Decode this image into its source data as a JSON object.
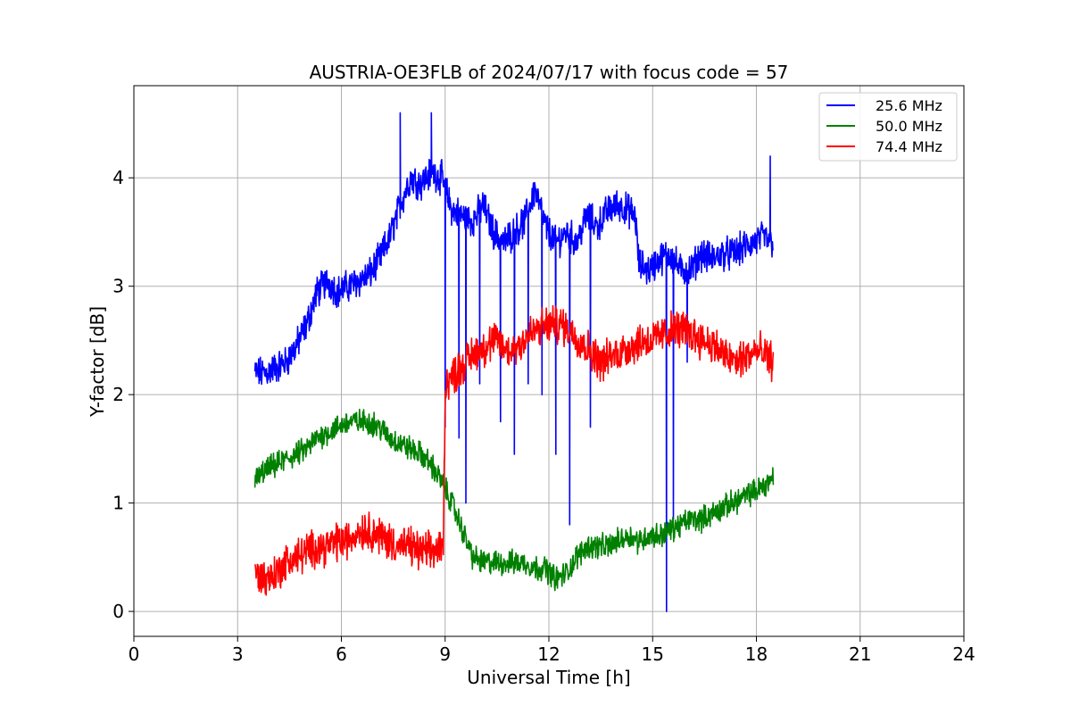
{
  "chart_data": {
    "type": "line",
    "title": "AUSTRIA-OE3FLB of 2024/07/17 with focus code = 57",
    "xlabel": "Universal Time [h]",
    "ylabel": "Y-factor [dB]",
    "xlim": [
      0,
      24
    ],
    "ylim": [
      -0.23,
      4.85
    ],
    "xticks": [
      0,
      3,
      6,
      9,
      12,
      15,
      18,
      21,
      24
    ],
    "yticks": [
      0,
      1,
      2,
      3,
      4
    ],
    "grid": true,
    "legend_position": "top-right",
    "series": [
      {
        "name": "25.6 MHz",
        "color": "#0000ff",
        "x": [
          3.5,
          3.8,
          4.1,
          4.4,
          4.7,
          5.0,
          5.3,
          5.6,
          5.9,
          6.2,
          6.5,
          6.8,
          7.1,
          7.4,
          7.7,
          8.0,
          8.3,
          8.6,
          8.9,
          9.2,
          9.5,
          9.8,
          10.1,
          10.4,
          10.7,
          11.0,
          11.3,
          11.6,
          11.9,
          12.2,
          12.5,
          12.8,
          13.1,
          13.4,
          13.7,
          14.0,
          14.3,
          14.5,
          14.6,
          14.9,
          15.2,
          15.5,
          15.8,
          16.1,
          16.4,
          16.7,
          17.0,
          17.3,
          17.6,
          17.9,
          18.2,
          18.5
        ],
        "y": [
          2.2,
          2.2,
          2.25,
          2.3,
          2.45,
          2.65,
          2.95,
          3.05,
          2.95,
          3.0,
          3.05,
          3.1,
          3.25,
          3.45,
          3.75,
          4.0,
          3.95,
          4.05,
          4.0,
          3.7,
          3.65,
          3.6,
          3.75,
          3.5,
          3.4,
          3.5,
          3.6,
          3.9,
          3.55,
          3.4,
          3.5,
          3.4,
          3.65,
          3.55,
          3.7,
          3.75,
          3.7,
          3.65,
          3.2,
          3.15,
          3.25,
          3.3,
          3.15,
          3.15,
          3.3,
          3.25,
          3.3,
          3.3,
          3.35,
          3.4,
          3.45,
          3.4
        ],
        "spikes": [
          [
            7.7,
            4.6
          ],
          [
            8.6,
            4.6
          ],
          [
            9.0,
            1.7
          ],
          [
            9.4,
            1.6
          ],
          [
            9.6,
            1.0
          ],
          [
            10.0,
            2.1
          ],
          [
            10.6,
            1.75
          ],
          [
            11.0,
            1.45
          ],
          [
            11.4,
            2.1
          ],
          [
            11.8,
            2.0
          ],
          [
            12.2,
            1.45
          ],
          [
            12.6,
            0.8
          ],
          [
            13.2,
            1.7
          ],
          [
            15.4,
            0.0
          ],
          [
            15.6,
            0.85
          ],
          [
            16.0,
            2.3
          ],
          [
            18.4,
            4.2
          ]
        ]
      },
      {
        "name": "50.0 MHz",
        "color": "#008000",
        "x": [
          3.5,
          3.8,
          4.1,
          4.4,
          4.7,
          5.0,
          5.3,
          5.6,
          5.9,
          6.2,
          6.5,
          6.8,
          7.1,
          7.4,
          7.7,
          8.0,
          8.3,
          8.6,
          8.9,
          9.2,
          9.5,
          9.8,
          10.1,
          10.4,
          10.7,
          11.0,
          11.3,
          11.6,
          11.9,
          12.2,
          12.5,
          12.8,
          13.1,
          13.4,
          13.7,
          14.0,
          14.3,
          14.6,
          14.9,
          15.2,
          15.5,
          15.8,
          16.1,
          16.4,
          16.7,
          17.0,
          17.3,
          17.6,
          17.9,
          18.2,
          18.5
        ],
        "y": [
          1.2,
          1.3,
          1.35,
          1.4,
          1.45,
          1.5,
          1.6,
          1.65,
          1.7,
          1.75,
          1.75,
          1.75,
          1.7,
          1.6,
          1.55,
          1.5,
          1.45,
          1.35,
          1.2,
          1.0,
          0.75,
          0.5,
          0.45,
          0.45,
          0.45,
          0.45,
          0.45,
          0.4,
          0.4,
          0.3,
          0.35,
          0.5,
          0.6,
          0.6,
          0.6,
          0.65,
          0.7,
          0.65,
          0.7,
          0.7,
          0.75,
          0.8,
          0.85,
          0.85,
          0.9,
          0.95,
          1.0,
          1.05,
          1.1,
          1.15,
          1.25
        ]
      },
      {
        "name": "74.4 MHz",
        "color": "#ff0000",
        "x": [
          3.5,
          3.8,
          4.1,
          4.4,
          4.7,
          5.0,
          5.3,
          5.6,
          5.9,
          6.2,
          6.5,
          6.8,
          7.1,
          7.4,
          7.7,
          8.0,
          8.3,
          8.6,
          8.95,
          9.0,
          9.3,
          9.6,
          9.9,
          10.2,
          10.5,
          10.8,
          11.1,
          11.4,
          11.7,
          12.0,
          12.3,
          12.6,
          12.9,
          13.2,
          13.5,
          13.8,
          14.1,
          14.4,
          14.7,
          15.0,
          15.3,
          15.6,
          15.9,
          16.2,
          16.5,
          16.8,
          17.1,
          17.4,
          17.7,
          18.0,
          18.3,
          18.5
        ],
        "y": [
          0.35,
          0.3,
          0.35,
          0.45,
          0.5,
          0.55,
          0.6,
          0.6,
          0.65,
          0.65,
          0.75,
          0.75,
          0.7,
          0.65,
          0.6,
          0.6,
          0.55,
          0.55,
          0.6,
          2.1,
          2.2,
          2.3,
          2.4,
          2.45,
          2.5,
          2.4,
          2.45,
          2.55,
          2.6,
          2.65,
          2.65,
          2.6,
          2.5,
          2.4,
          2.3,
          2.35,
          2.4,
          2.45,
          2.5,
          2.5,
          2.55,
          2.6,
          2.6,
          2.55,
          2.5,
          2.45,
          2.35,
          2.3,
          2.35,
          2.4,
          2.35,
          2.3
        ]
      }
    ]
  }
}
